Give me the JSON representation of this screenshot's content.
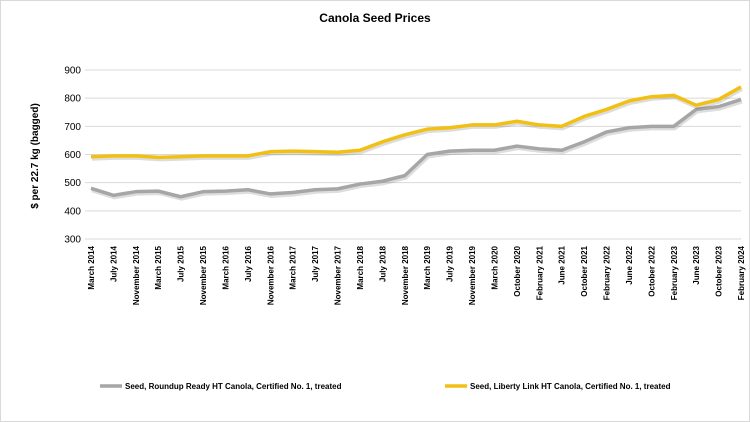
{
  "chart_data": {
    "type": "line",
    "title": "Canola Seed Prices",
    "ylabel": "$ per 22.7 kg (bagged)",
    "xlabel": "",
    "ylim": [
      300,
      900
    ],
    "yticks": [
      300,
      400,
      500,
      600,
      700,
      800,
      900
    ],
    "grid": true,
    "legend_placement": "bottom",
    "categories": [
      "March 2014",
      "July 2014",
      "November 2014",
      "March 2015",
      "July 2015",
      "November 2015",
      "March 2016",
      "July 2016",
      "November 2016",
      "March 2017",
      "July 2017",
      "November 2017",
      "March 2018",
      "July 2018",
      "November 2018",
      "March 2019",
      "July 2019",
      "November 2019",
      "March 2020",
      "October 2020",
      "February 2021",
      "June 2021",
      "October 2021",
      "February 2022",
      "June 2022",
      "October 2022",
      "February 2023",
      "June 2023",
      "October 2023",
      "February 2024"
    ],
    "series": [
      {
        "name": "Seed, Roundup Ready HT Canola, Certified No. 1, treated",
        "color": "#a6a6a6",
        "values": [
          480,
          455,
          468,
          470,
          450,
          468,
          470,
          475,
          460,
          465,
          475,
          478,
          495,
          505,
          525,
          600,
          612,
          615,
          615,
          630,
          620,
          615,
          645,
          680,
          695,
          700,
          700,
          760,
          770,
          795
        ]
      },
      {
        "name": "Seed, Liberty Link HT Canola, Certified No. 1, treated",
        "color": "#f2c014",
        "values": [
          592,
          595,
          595,
          590,
          592,
          595,
          595,
          595,
          610,
          612,
          610,
          608,
          615,
          645,
          670,
          690,
          695,
          705,
          705,
          718,
          705,
          700,
          735,
          760,
          790,
          805,
          810,
          775,
          795,
          840
        ]
      }
    ]
  }
}
